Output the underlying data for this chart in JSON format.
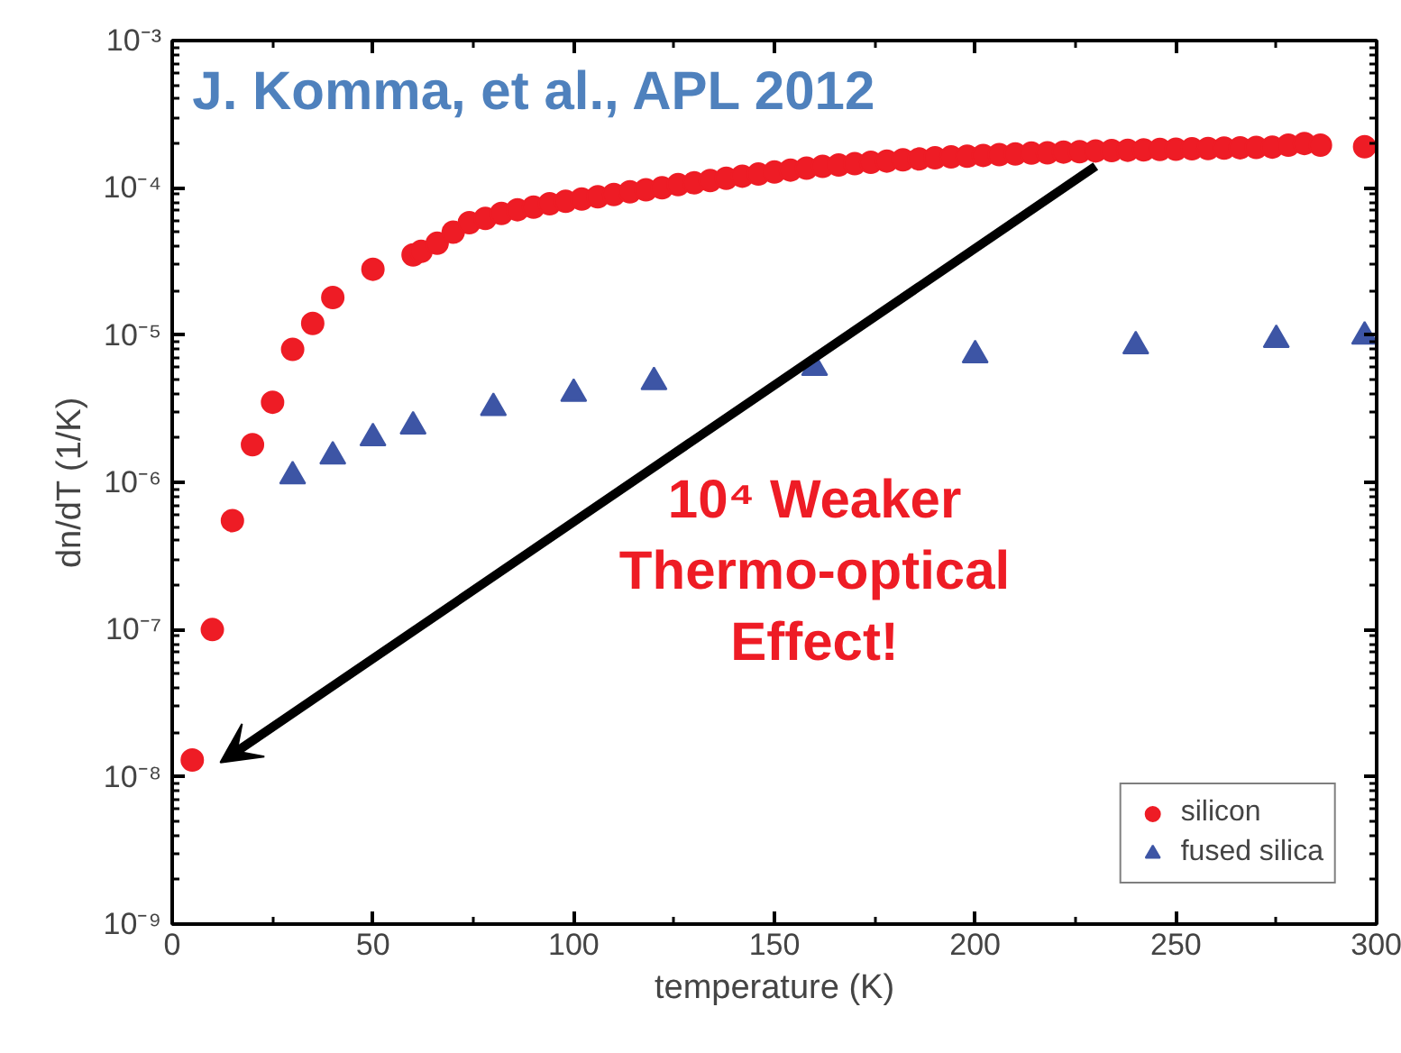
{
  "chart_data": {
    "type": "scatter",
    "xlabel": "temperature (K)",
    "ylabel": "dn/dT (1/K)",
    "annotations": [
      "J. Komma, et al., APL 2012",
      "10⁴ Weaker Thermo-optical Effect!"
    ],
    "log": "y",
    "grid": false,
    "legend": "bottom right",
    "xlim": [
      0,
      300
    ],
    "xticks": [
      0,
      50,
      100,
      150,
      200,
      250,
      300
    ],
    "ylim": [
      1e-09,
      0.001
    ],
    "yticks": [
      {
        "value": 1e-09,
        "label": "10⁻⁹"
      },
      {
        "value": 1e-08,
        "label": "10⁻⁸"
      },
      {
        "value": 1e-07,
        "label": "10⁻⁷"
      },
      {
        "value": 1e-06,
        "label": "10⁻⁶"
      },
      {
        "value": 1e-05,
        "label": "10⁻⁵"
      },
      {
        "value": 0.0001,
        "label": "10⁻⁴"
      },
      {
        "value": 0.001,
        "label": "10⁻³"
      }
    ],
    "series": [
      {
        "name": "silicon",
        "color": "#ee1c25",
        "marker": "circle",
        "x": [
          5,
          10,
          15,
          20,
          25,
          30,
          35,
          40,
          50,
          60,
          62,
          66,
          70,
          74,
          78,
          82,
          86,
          90,
          94,
          98,
          102,
          106,
          110,
          114,
          118,
          122,
          126,
          130,
          134,
          138,
          142,
          146,
          150,
          154,
          158,
          162,
          166,
          170,
          174,
          178,
          182,
          186,
          190,
          194,
          198,
          202,
          206,
          210,
          214,
          218,
          222,
          226,
          230,
          234,
          238,
          242,
          246,
          250,
          254,
          258,
          262,
          266,
          270,
          274,
          278,
          282,
          286,
          297
        ],
        "values": [
          1.3e-08,
          1e-07,
          5.5e-07,
          1.8e-06,
          3.5e-06,
          8e-06,
          1.2e-05,
          1.8e-05,
          2.8e-05,
          3.5e-05,
          3.7e-05,
          4.2e-05,
          5e-05,
          5.8e-05,
          6.2e-05,
          6.7e-05,
          7.1e-05,
          7.4e-05,
          7.8e-05,
          8.1e-05,
          8.4e-05,
          8.7e-05,
          9e-05,
          9.4e-05,
          9.7e-05,
          0.0001,
          0.000105,
          0.000108,
          0.000112,
          0.000116,
          0.00012,
          0.000124,
          0.000128,
          0.000132,
          0.000136,
          0.00014,
          0.000143,
          0.000146,
          0.000149,
          0.000152,
          0.000155,
          0.000157,
          0.00016,
          0.000162,
          0.000164,
          0.000166,
          0.000168,
          0.00017,
          0.000172,
          0.000173,
          0.000175,
          0.000176,
          0.000178,
          0.000179,
          0.00018,
          0.000181,
          0.000182,
          0.000183,
          0.000184,
          0.000185,
          0.000186,
          0.000187,
          0.000188,
          0.000189,
          0.000195,
          0.0002,
          0.000195,
          0.00019
        ]
      },
      {
        "name": "fused silica",
        "color": "#3d55a5",
        "marker": "triangle",
        "x": [
          30,
          40,
          50,
          60,
          80,
          100,
          120,
          160,
          200,
          240,
          275,
          297
        ],
        "values": [
          1.1e-06,
          1.5e-06,
          2e-06,
          2.4e-06,
          3.2e-06,
          4e-06,
          4.8e-06,
          6e-06,
          7.3e-06,
          8.4e-06,
          9.3e-06,
          9.8e-06
        ]
      }
    ]
  }
}
